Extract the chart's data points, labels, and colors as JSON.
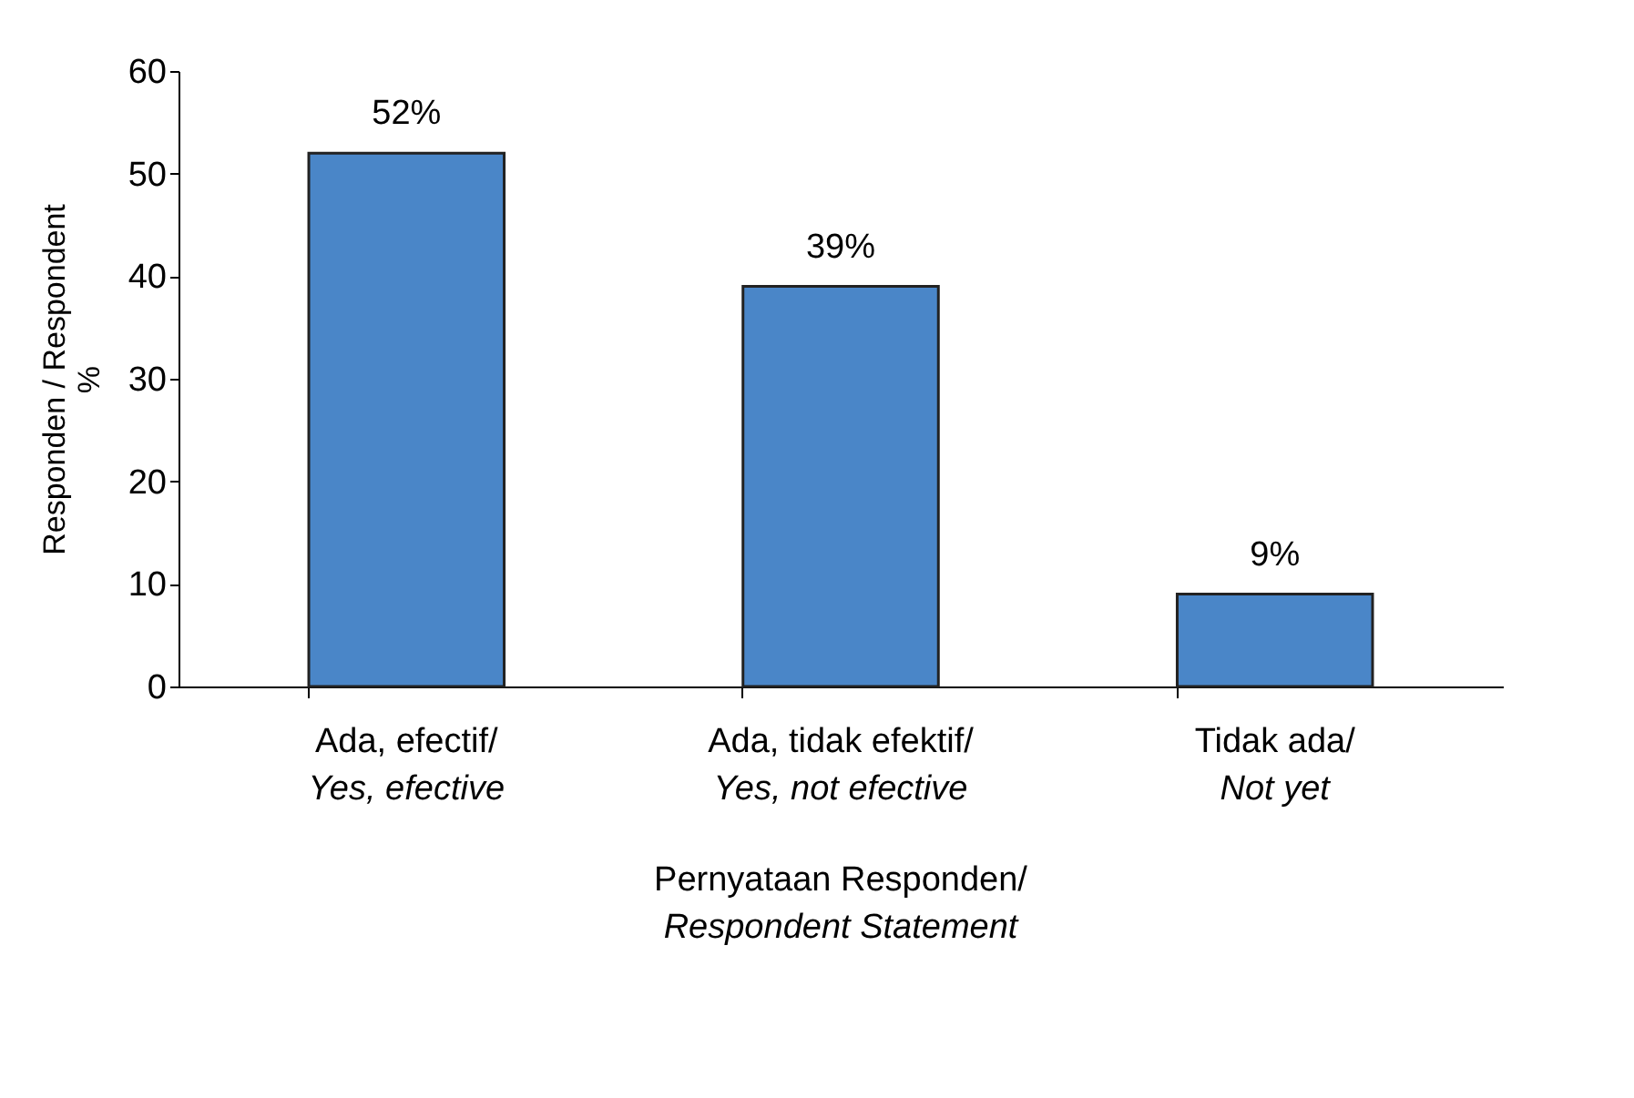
{
  "chart_data": {
    "type": "bar",
    "categories": [
      "Ada, efectif/\nYes, efective",
      "Ada, tidak efektif/\nYes, not efective",
      "Tidak ada/\nNot yet"
    ],
    "values": [
      52,
      39,
      9
    ],
    "color": "#4a86c8",
    "ylabel": "Responden / Respondent\n%",
    "xlabel": "Pernyataan Responden/\nRespondent Statement",
    "ylim": [
      0,
      60
    ],
    "yticks": [
      0,
      10,
      20,
      30,
      40,
      50,
      60
    ],
    "data_labels": true,
    "value_labels": [
      "52%",
      "39%",
      "9%"
    ],
    "grid": false
  }
}
